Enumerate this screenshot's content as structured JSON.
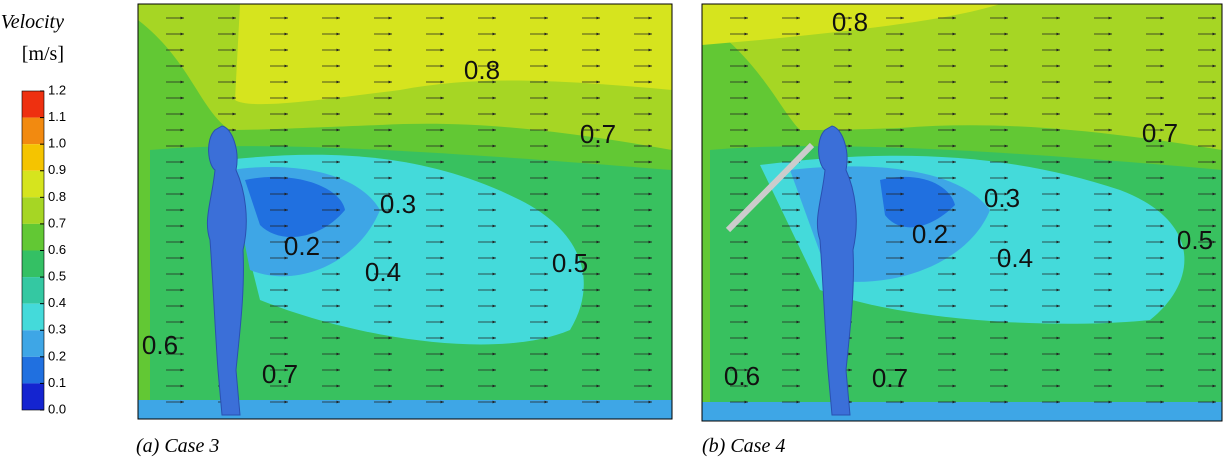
{
  "colorbar": {
    "title": "Velocity",
    "unit": "[m/s]",
    "labels": [
      "1.2",
      "1.1",
      "1.0",
      "0.9",
      "0.8",
      "0.7",
      "0.6",
      "0.5",
      "0.4",
      "0.3",
      "0.2",
      "0.1",
      "0.0"
    ],
    "colors": [
      "#ee3010",
      "#f28a10",
      "#f5c400",
      "#d6e41e",
      "#a6d624",
      "#62c834",
      "#34c064",
      "#34c8a2",
      "#44dada",
      "#3ea6e6",
      "#2070e0",
      "#1424d0"
    ]
  },
  "panels": [
    {
      "caption": "(a) Case 3",
      "labels": [
        "0.8",
        "0.7",
        "0.3",
        "0.2",
        "0.4",
        "0.5",
        "0.6",
        "0.7"
      ]
    },
    {
      "caption": "(b) Case 4",
      "labels": [
        "0.8",
        "0.7",
        "0.3",
        "0.2",
        "0.4",
        "0.5",
        "0.6",
        "0.7"
      ]
    }
  ]
}
